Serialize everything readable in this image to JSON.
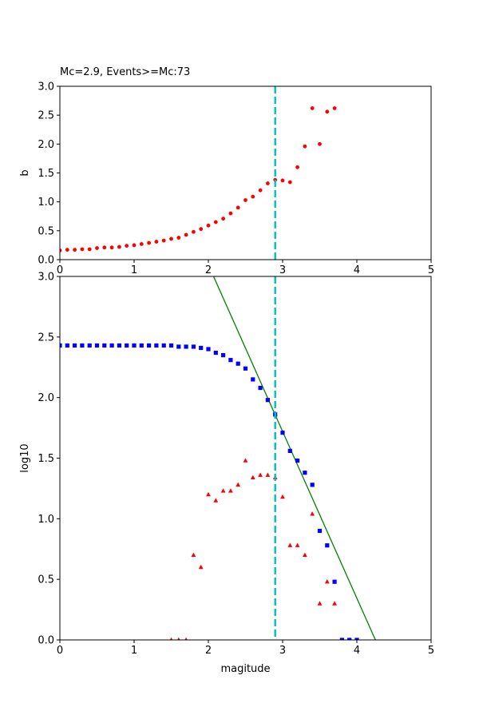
{
  "chart_data": [
    {
      "type": "scatter",
      "title": "Mc=2.9, Events>=Mc:73",
      "xlabel": "",
      "ylabel": "b",
      "xlim": [
        0,
        5
      ],
      "ylim": [
        0,
        3
      ],
      "xticks": [
        "0",
        "1",
        "2",
        "3",
        "4",
        "5"
      ],
      "yticks": [
        "0.0",
        "0.5",
        "1.0",
        "1.5",
        "2.0",
        "2.5",
        "3.0"
      ],
      "grid": false,
      "series": [
        {
          "marker": "circle",
          "color": "#ff0000",
          "points": [
            [
              0.0,
              0.16
            ],
            [
              0.1,
              0.17
            ],
            [
              0.2,
              0.17
            ],
            [
              0.3,
              0.18
            ],
            [
              0.4,
              0.18
            ],
            [
              0.5,
              0.2
            ],
            [
              0.6,
              0.21
            ],
            [
              0.7,
              0.21
            ],
            [
              0.8,
              0.22
            ],
            [
              0.9,
              0.24
            ],
            [
              1.0,
              0.25
            ],
            [
              1.1,
              0.27
            ],
            [
              1.2,
              0.29
            ],
            [
              1.3,
              0.31
            ],
            [
              1.4,
              0.33
            ],
            [
              1.5,
              0.36
            ],
            [
              1.6,
              0.38
            ],
            [
              1.7,
              0.43
            ],
            [
              1.8,
              0.48
            ],
            [
              1.9,
              0.53
            ],
            [
              2.0,
              0.59
            ],
            [
              2.1,
              0.65
            ],
            [
              2.2,
              0.71
            ],
            [
              2.3,
              0.8
            ],
            [
              2.4,
              0.9
            ],
            [
              2.5,
              1.03
            ],
            [
              2.6,
              1.09
            ],
            [
              2.7,
              1.2
            ],
            [
              2.8,
              1.32
            ],
            [
              2.9,
              1.38
            ],
            [
              3.0,
              1.37
            ],
            [
              3.1,
              1.34
            ],
            [
              3.2,
              1.6
            ],
            [
              3.3,
              1.96
            ],
            [
              3.4,
              2.62
            ],
            [
              3.5,
              2.0
            ],
            [
              3.6,
              2.56
            ],
            [
              3.7,
              2.62
            ]
          ]
        }
      ],
      "vline": {
        "x": 2.9,
        "color": "#00bfbf",
        "style": "dashed"
      }
    },
    {
      "type": "scatter",
      "title": "",
      "xlabel": "magitude",
      "ylabel": "log10",
      "xlim": [
        0,
        5
      ],
      "ylim": [
        0,
        3
      ],
      "xticks": [
        "0",
        "1",
        "2",
        "3",
        "4",
        "5"
      ],
      "yticks": [
        "0.0",
        "0.5",
        "1.0",
        "1.5",
        "2.0",
        "2.5",
        "3.0"
      ],
      "grid": false,
      "series": [
        {
          "marker": "square",
          "color": "#0000ff",
          "points": [
            [
              0.0,
              2.43
            ],
            [
              0.1,
              2.43
            ],
            [
              0.2,
              2.43
            ],
            [
              0.3,
              2.43
            ],
            [
              0.4,
              2.43
            ],
            [
              0.5,
              2.43
            ],
            [
              0.6,
              2.43
            ],
            [
              0.7,
              2.43
            ],
            [
              0.8,
              2.43
            ],
            [
              0.9,
              2.43
            ],
            [
              1.0,
              2.43
            ],
            [
              1.1,
              2.43
            ],
            [
              1.2,
              2.43
            ],
            [
              1.3,
              2.43
            ],
            [
              1.4,
              2.43
            ],
            [
              1.5,
              2.43
            ],
            [
              1.6,
              2.42
            ],
            [
              1.7,
              2.42
            ],
            [
              1.8,
              2.42
            ],
            [
              1.9,
              2.41
            ],
            [
              2.0,
              2.4
            ],
            [
              2.1,
              2.37
            ],
            [
              2.2,
              2.35
            ],
            [
              2.3,
              2.31
            ],
            [
              2.4,
              2.28
            ],
            [
              2.5,
              2.24
            ],
            [
              2.6,
              2.15
            ],
            [
              2.7,
              2.08
            ],
            [
              2.8,
              1.98
            ],
            [
              2.9,
              1.86
            ],
            [
              3.0,
              1.71
            ],
            [
              3.1,
              1.56
            ],
            [
              3.2,
              1.48
            ],
            [
              3.3,
              1.38
            ],
            [
              3.4,
              1.28
            ],
            [
              3.5,
              0.9
            ],
            [
              3.6,
              0.78
            ],
            [
              3.7,
              0.48
            ],
            [
              3.8,
              0.0
            ],
            [
              3.9,
              0.0
            ],
            [
              4.0,
              0.0
            ]
          ]
        },
        {
          "marker": "triangle",
          "color": "#ff0000",
          "points": [
            [
              1.5,
              0.0
            ],
            [
              1.6,
              0.0
            ],
            [
              1.7,
              0.0
            ],
            [
              1.8,
              0.7
            ],
            [
              1.9,
              0.6
            ],
            [
              2.0,
              1.2
            ],
            [
              2.1,
              1.15
            ],
            [
              2.2,
              1.23
            ],
            [
              2.3,
              1.23
            ],
            [
              2.4,
              1.28
            ],
            [
              2.5,
              1.48
            ],
            [
              2.6,
              1.34
            ],
            [
              2.7,
              1.36
            ],
            [
              2.8,
              1.36
            ],
            [
              2.9,
              1.34
            ],
            [
              3.0,
              1.18
            ],
            [
              3.1,
              0.78
            ],
            [
              3.2,
              0.78
            ],
            [
              3.3,
              0.7
            ],
            [
              3.4,
              1.04
            ],
            [
              3.5,
              0.3
            ],
            [
              3.6,
              0.48
            ],
            [
              3.7,
              0.3
            ]
          ]
        }
      ],
      "fit_line": {
        "color": "#008000",
        "points": [
          [
            2.07,
            3.0
          ],
          [
            4.25,
            0.0
          ]
        ]
      },
      "vline": {
        "x": 2.9,
        "color": "#00bfbf",
        "style": "dashed"
      }
    }
  ]
}
